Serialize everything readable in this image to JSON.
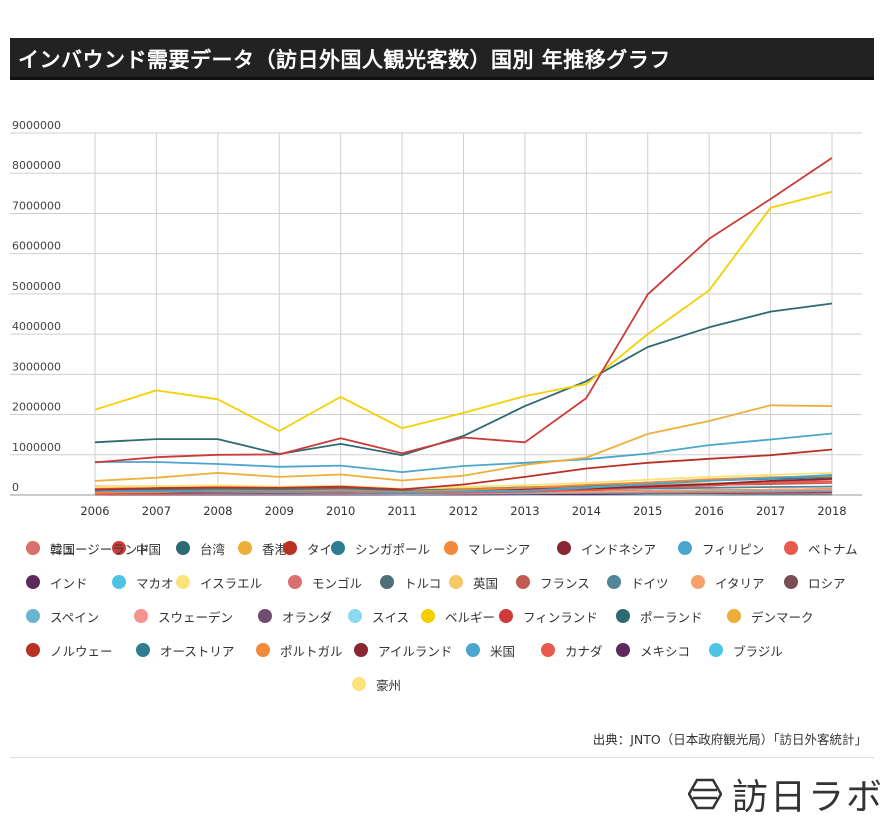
{
  "header": {
    "title": "インバウンド需要データ（訪日外国人観光客数）国別 年推移グラフ"
  },
  "chart_data": {
    "type": "line",
    "title": "インバウンド需要データ（訪日外国人観光客数）国別 年推移グラフ",
    "xlabel": "",
    "ylabel": "",
    "categories": [
      "2006",
      "2007",
      "2008",
      "2009",
      "2010",
      "2011",
      "2012",
      "2013",
      "2014",
      "2015",
      "2016",
      "2017",
      "2018"
    ],
    "ylim": [
      0,
      9000000
    ],
    "yticks": [
      0,
      1000000,
      2000000,
      3000000,
      4000000,
      5000000,
      6000000,
      7000000,
      8000000,
      9000000
    ],
    "ytick_labels": [
      "0",
      "1000000",
      "2000000",
      "3000000",
      "4000000",
      "5000000",
      "6000000",
      "7000000",
      "8000000",
      "9000000"
    ],
    "grid": true,
    "legend_position": "bottom",
    "series": [
      {
        "name": "韓国",
        "color": "#F5D000",
        "values": [
          2120000,
          2600000,
          2380000,
          1590000,
          2440000,
          1660000,
          2040000,
          2460000,
          2760000,
          4000000,
          5090000,
          7140000,
          7540000
        ]
      },
      {
        "name": "中国",
        "color": "#CD3A3A",
        "values": [
          810000,
          940000,
          1000000,
          1010000,
          1410000,
          1040000,
          1430000,
          1310000,
          2410000,
          4990000,
          6370000,
          7360000,
          8380000
        ]
      },
      {
        "name": "台湾",
        "color": "#2D6A73",
        "values": [
          1310000,
          1390000,
          1390000,
          1020000,
          1270000,
          990000,
          1470000,
          2210000,
          2830000,
          3680000,
          4170000,
          4560000,
          4760000
        ]
      },
      {
        "name": "香港",
        "color": "#EDAE3A",
        "values": [
          350000,
          430000,
          550000,
          450000,
          510000,
          360000,
          480000,
          750000,
          930000,
          1520000,
          1840000,
          2230000,
          2210000
        ]
      },
      {
        "name": "タイ",
        "color": "#B93025",
        "values": [
          130000,
          170000,
          190000,
          180000,
          210000,
          140000,
          260000,
          450000,
          660000,
          800000,
          900000,
          990000,
          1130000
        ]
      },
      {
        "name": "シンガポール",
        "color": "#2E7D93",
        "values": [
          120000,
          150000,
          170000,
          150000,
          180000,
          110000,
          140000,
          190000,
          230000,
          310000,
          360000,
          400000,
          440000
        ]
      },
      {
        "name": "マレーシア",
        "color": "#F08A3A",
        "values": [
          60000,
          70000,
          100000,
          90000,
          110000,
          80000,
          130000,
          180000,
          250000,
          310000,
          390000,
          440000,
          470000
        ]
      },
      {
        "name": "インドネシア",
        "color": "#8A2532",
        "values": [
          60000,
          60000,
          70000,
          60000,
          80000,
          60000,
          100000,
          140000,
          160000,
          210000,
          270000,
          350000,
          400000
        ]
      },
      {
        "name": "フィリピン",
        "color": "#4AA6CC",
        "values": [
          100000,
          90000,
          80000,
          70000,
          80000,
          60000,
          90000,
          110000,
          180000,
          270000,
          350000,
          420000,
          500000
        ]
      },
      {
        "name": "ベトナム",
        "color": "#E85A4F",
        "values": [
          20000,
          30000,
          40000,
          40000,
          40000,
          40000,
          60000,
          80000,
          120000,
          190000,
          230000,
          310000,
          390000
        ]
      },
      {
        "name": "インド",
        "color": "#5E2A5E",
        "values": [
          60000,
          70000,
          70000,
          60000,
          70000,
          60000,
          70000,
          80000,
          90000,
          100000,
          120000,
          130000,
          150000
        ]
      },
      {
        "name": "マカオ",
        "color": "#4CC5E5",
        "values": [
          10000,
          10000,
          10000,
          10000,
          10000,
          10000,
          10000,
          10000,
          20000,
          20000,
          30000,
          40000,
          50000
        ]
      },
      {
        "name": "イスラエル",
        "color": "#FBE37A",
        "values": [
          10000,
          10000,
          10000,
          10000,
          10000,
          10000,
          10000,
          10000,
          20000,
          20000,
          20000,
          30000,
          30000
        ]
      },
      {
        "name": "モンゴル",
        "color": "#D9706F",
        "values": [
          10000,
          10000,
          10000,
          10000,
          10000,
          10000,
          10000,
          10000,
          20000,
          20000,
          20000,
          30000,
          30000
        ]
      },
      {
        "name": "トルコ",
        "color": "#4E6F78",
        "values": [
          10000,
          10000,
          10000,
          10000,
          10000,
          10000,
          10000,
          10000,
          10000,
          20000,
          20000,
          20000,
          20000
        ]
      },
      {
        "name": "英国",
        "color": "#F7C76A",
        "values": [
          220000,
          220000,
          210000,
          180000,
          180000,
          140000,
          170000,
          190000,
          220000,
          260000,
          290000,
          310000,
          330000
        ]
      },
      {
        "name": "フランス",
        "color": "#C15B52",
        "values": [
          140000,
          140000,
          150000,
          140000,
          150000,
          100000,
          130000,
          150000,
          180000,
          210000,
          250000,
          270000,
          300000
        ]
      },
      {
        "name": "ドイツ",
        "color": "#4F8797",
        "values": [
          120000,
          130000,
          130000,
          110000,
          120000,
          80000,
          110000,
          120000,
          140000,
          160000,
          180000,
          200000,
          210000
        ]
      },
      {
        "name": "イタリア",
        "color": "#F6A06A",
        "values": [
          40000,
          50000,
          60000,
          60000,
          70000,
          40000,
          60000,
          70000,
          80000,
          100000,
          120000,
          130000,
          150000
        ]
      },
      {
        "name": "ロシア",
        "color": "#7D4D55",
        "values": [
          40000,
          50000,
          50000,
          40000,
          50000,
          30000,
          50000,
          60000,
          60000,
          50000,
          50000,
          80000,
          90000
        ]
      },
      {
        "name": "スペイン",
        "color": "#6AB4D2",
        "values": [
          20000,
          30000,
          30000,
          30000,
          30000,
          20000,
          40000,
          40000,
          60000,
          80000,
          90000,
          100000,
          120000
        ]
      },
      {
        "name": "スウェーデン",
        "color": "#F4948A",
        "values": [
          20000,
          20000,
          20000,
          20000,
          20000,
          20000,
          20000,
          30000,
          30000,
          40000,
          40000,
          50000,
          50000
        ]
      },
      {
        "name": "オランダ",
        "color": "#6E4E6E",
        "values": [
          30000,
          30000,
          30000,
          30000,
          30000,
          20000,
          30000,
          30000,
          40000,
          50000,
          50000,
          60000,
          70000
        ]
      },
      {
        "name": "スイス",
        "color": "#8DD8EE",
        "values": [
          20000,
          20000,
          20000,
          20000,
          20000,
          20000,
          20000,
          20000,
          30000,
          30000,
          40000,
          40000,
          40000
        ]
      },
      {
        "name": "ベルギー",
        "color": "#F5D000",
        "values": [
          10000,
          10000,
          10000,
          10000,
          10000,
          10000,
          10000,
          10000,
          20000,
          20000,
          20000,
          30000,
          30000
        ]
      },
      {
        "name": "フィンランド",
        "color": "#CD3A3A",
        "values": [
          10000,
          10000,
          10000,
          10000,
          10000,
          10000,
          10000,
          10000,
          20000,
          20000,
          20000,
          20000,
          30000
        ]
      },
      {
        "name": "ポーランド",
        "color": "#2D6A73",
        "values": [
          10000,
          10000,
          10000,
          10000,
          10000,
          10000,
          10000,
          10000,
          10000,
          20000,
          20000,
          20000,
          30000
        ]
      },
      {
        "name": "デンマーク",
        "color": "#EDAE3A",
        "values": [
          10000,
          10000,
          10000,
          10000,
          10000,
          10000,
          10000,
          10000,
          10000,
          10000,
          10000,
          20000,
          20000
        ]
      },
      {
        "name": "ノルウェー",
        "color": "#B93025",
        "values": [
          10000,
          10000,
          10000,
          10000,
          10000,
          10000,
          10000,
          10000,
          10000,
          10000,
          10000,
          10000,
          10000
        ]
      },
      {
        "name": "オーストリア",
        "color": "#2E7D93",
        "values": [
          10000,
          10000,
          10000,
          10000,
          10000,
          10000,
          10000,
          10000,
          10000,
          10000,
          20000,
          20000,
          20000
        ]
      },
      {
        "name": "ポルトガル",
        "color": "#F08A3A",
        "values": [
          10000,
          10000,
          10000,
          10000,
          10000,
          10000,
          10000,
          10000,
          10000,
          10000,
          10000,
          10000,
          20000
        ]
      },
      {
        "name": "アイルランド",
        "color": "#8A2532",
        "values": [
          10000,
          10000,
          10000,
          10000,
          10000,
          10000,
          10000,
          10000,
          10000,
          10000,
          10000,
          20000,
          20000
        ]
      },
      {
        "name": "米国",
        "color": "#4AA6CC",
        "values": [
          820000,
          820000,
          770000,
          700000,
          730000,
          570000,
          720000,
          800000,
          890000,
          1030000,
          1240000,
          1380000,
          1530000
        ]
      },
      {
        "name": "カナダ",
        "color": "#E85A4F",
        "values": [
          160000,
          170000,
          170000,
          150000,
          150000,
          100000,
          140000,
          150000,
          180000,
          230000,
          270000,
          310000,
          330000
        ]
      },
      {
        "name": "メキシコ",
        "color": "#5E2A5E",
        "values": [
          10000,
          10000,
          10000,
          10000,
          10000,
          10000,
          10000,
          20000,
          20000,
          40000,
          50000,
          60000,
          70000
        ]
      },
      {
        "name": "ブラジル",
        "color": "#4CC5E5",
        "values": [
          20000,
          20000,
          20000,
          20000,
          20000,
          10000,
          20000,
          20000,
          20000,
          30000,
          30000,
          40000,
          40000
        ]
      },
      {
        "name": "豪州",
        "color": "#FBE37A",
        "values": [
          200000,
          220000,
          240000,
          210000,
          230000,
          160000,
          210000,
          240000,
          300000,
          380000,
          450000,
          500000,
          550000
        ]
      },
      {
        "name": "ニュージーランド",
        "color": "#D9706F",
        "values": [
          30000,
          30000,
          30000,
          30000,
          30000,
          20000,
          30000,
          40000,
          50000,
          60000,
          70000,
          80000,
          90000
        ]
      }
    ]
  },
  "source": {
    "text": "出典：JNTO（日本政府観光局）「訪日外客統計」"
  },
  "logo": {
    "text": "訪日ラボ"
  }
}
